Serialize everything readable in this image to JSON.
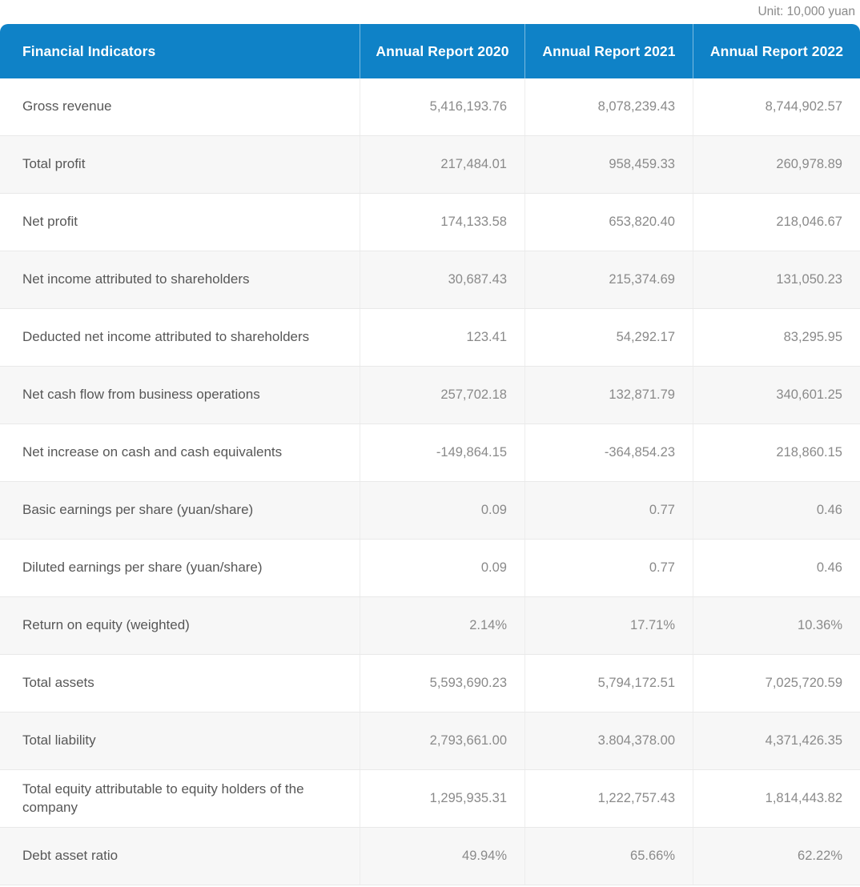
{
  "unit_label": "Unit: 10,000 yuan",
  "colors": {
    "header_bg": "#0f82c7",
    "header_text": "#ffffff",
    "row_bg": "#ffffff",
    "row_alt_bg": "#f7f7f7",
    "row_divider": "#e9e9e9",
    "column_divider": "#ededed",
    "label_text": "#575757",
    "value_text": "#8a8a8a",
    "unit_text": "#8a8a8a"
  },
  "table": {
    "columns": [
      "Financial Indicators",
      "Annual Report 2020",
      "Annual Report 2021",
      "Annual Report 2022"
    ],
    "rows": [
      {
        "label": "Gross revenue",
        "values": [
          "5,416,193.76",
          "8,078,239.43",
          "8,744,902.57"
        ]
      },
      {
        "label": "Total profit",
        "values": [
          "217,484.01",
          "958,459.33",
          "260,978.89"
        ]
      },
      {
        "label": "Net profit",
        "values": [
          "174,133.58",
          "653,820.40",
          "218,046.67"
        ]
      },
      {
        "label": "Net income attributed to shareholders",
        "values": [
          "30,687.43",
          "215,374.69",
          "131,050.23"
        ]
      },
      {
        "label": "Deducted net income attributed to shareholders",
        "values": [
          "123.41",
          "54,292.17",
          "83,295.95"
        ]
      },
      {
        "label": "Net cash flow from business operations",
        "values": [
          "257,702.18",
          "132,871.79",
          "340,601.25"
        ]
      },
      {
        "label": "Net increase on cash and cash equivalents",
        "values": [
          "-149,864.15",
          "-364,854.23",
          "218,860.15"
        ]
      },
      {
        "label": "Basic earnings per share (yuan/share)",
        "values": [
          "0.09",
          "0.77",
          "0.46"
        ]
      },
      {
        "label": "Diluted earnings per share (yuan/share)",
        "values": [
          "0.09",
          "0.77",
          "0.46"
        ]
      },
      {
        "label": "Return on equity (weighted)",
        "values": [
          "2.14%",
          "17.71%",
          "10.36%"
        ]
      },
      {
        "label": "Total assets",
        "values": [
          "5,593,690.23",
          "5,794,172.51",
          "7,025,720.59"
        ]
      },
      {
        "label": "Total liability",
        "values": [
          "2,793,661.00",
          "3.804,378.00",
          "4,371,426.35"
        ]
      },
      {
        "label": "Total equity attributable to equity holders of the company",
        "values": [
          "1,295,935.31",
          "1,222,757.43",
          "1,814,443.82"
        ]
      },
      {
        "label": "Debt asset ratio",
        "values": [
          "49.94%",
          "65.66%",
          "62.22%"
        ]
      }
    ]
  },
  "chart_data": {
    "type": "table",
    "title": "Financial Indicators",
    "unit": "10,000 yuan",
    "categories": [
      "Annual Report 2020",
      "Annual Report 2021",
      "Annual Report 2022"
    ],
    "series": [
      {
        "name": "Gross revenue",
        "values": [
          5416193.76,
          8078239.43,
          8744902.57
        ]
      },
      {
        "name": "Total profit",
        "values": [
          217484.01,
          958459.33,
          260978.89
        ]
      },
      {
        "name": "Net profit",
        "values": [
          174133.58,
          653820.4,
          218046.67
        ]
      },
      {
        "name": "Net income attributed to shareholders",
        "values": [
          30687.43,
          215374.69,
          131050.23
        ]
      },
      {
        "name": "Deducted net income attributed to shareholders",
        "values": [
          123.41,
          54292.17,
          83295.95
        ]
      },
      {
        "name": "Net cash flow from business operations",
        "values": [
          257702.18,
          132871.79,
          340601.25
        ]
      },
      {
        "name": "Net increase on cash and cash equivalents",
        "values": [
          -149864.15,
          -364854.23,
          218860.15
        ]
      },
      {
        "name": "Basic earnings per share (yuan/share)",
        "values": [
          0.09,
          0.77,
          0.46
        ]
      },
      {
        "name": "Diluted earnings per share (yuan/share)",
        "values": [
          0.09,
          0.77,
          0.46
        ]
      },
      {
        "name": "Return on equity (weighted)",
        "values": [
          "2.14%",
          "17.71%",
          "10.36%"
        ]
      },
      {
        "name": "Total assets",
        "values": [
          5593690.23,
          5794172.51,
          7025720.59
        ]
      },
      {
        "name": "Total liability",
        "values": [
          "2,793,661.00",
          "3.804,378.00",
          "4,371,426.35"
        ]
      },
      {
        "name": "Total equity attributable to equity holders of the company",
        "values": [
          1295935.31,
          1222757.43,
          1814443.82
        ]
      },
      {
        "name": "Debt asset ratio",
        "values": [
          "49.94%",
          "65.66%",
          "62.22%"
        ]
      }
    ]
  }
}
